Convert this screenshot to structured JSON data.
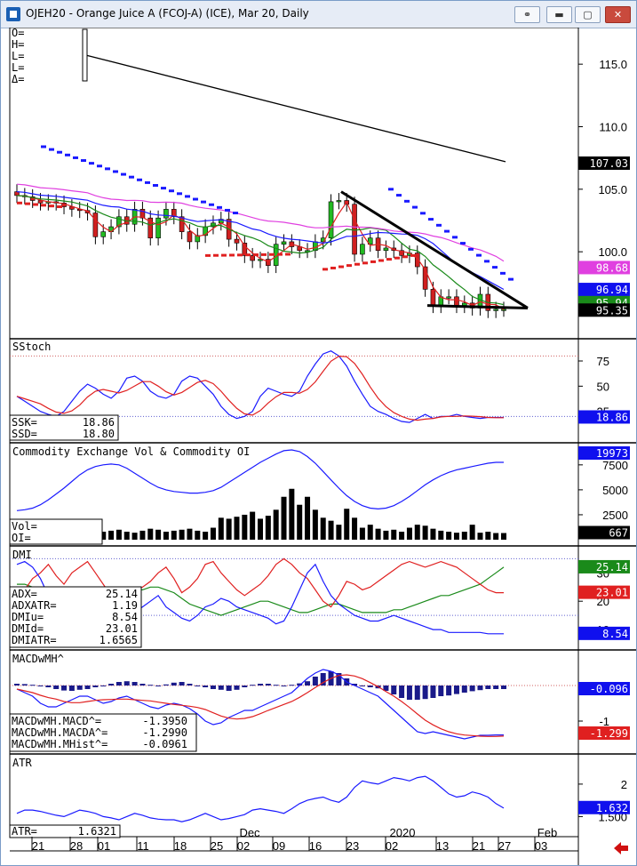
{
  "window": {
    "title": "OJEH20 - Orange Juice A (FCOJ-A) (ICE), Mar 20, Daily",
    "buttons": [
      "link-icon",
      "minimize-icon",
      "maximize-icon",
      "close-icon"
    ]
  },
  "colors": {
    "blue": "#1a1aff",
    "red": "#e02020",
    "green": "#1a8a1a",
    "magenta": "#e040e0",
    "black": "#000000",
    "panel_bg": "#ffffff"
  },
  "chart_data": [
    {
      "type": "candlestick",
      "title": "OJEH20 - Orange Juice A (FCOJ-A) (ICE), Mar 20, Daily",
      "ylim": [
        93.4,
        117.5
      ],
      "ticks": [
        100,
        105,
        110,
        115
      ],
      "tick_labels": [
        "100.0",
        "105.0",
        "110.0",
        "115.0"
      ],
      "ohlc_readout": [
        "O=",
        "H=",
        "L=",
        "L=",
        "Δ="
      ],
      "closes": [
        104.5,
        104.4,
        104.1,
        103.9,
        104.0,
        103.9,
        103.6,
        103.4,
        103.3,
        103.1,
        101.2,
        101.6,
        102.0,
        102.8,
        102.2,
        103.4,
        102.7,
        101.1,
        102.7,
        103.4,
        102.8,
        101.6,
        100.8,
        101.3,
        102.0,
        102.3,
        102.6,
        101.0,
        100.7,
        99.7,
        99.3,
        99.4,
        98.9,
        100.6,
        100.8,
        100.4,
        100.1,
        100.1,
        100.8,
        101.1,
        104.0,
        104.1,
        103.8,
        99.8,
        100.6,
        101.1,
        100.1,
        100.3,
        100.1,
        99.7,
        99.9,
        98.8,
        97.0,
        95.7,
        96.4,
        96.4,
        95.7,
        95.9,
        95.5,
        96.6,
        95.3,
        95.4,
        95.4
      ],
      "labels": {
        "price_last": "107.03",
        "sma_pink": "98.68",
        "sma_blue": "96.94",
        "sma_green": "95.94",
        "last_close": "95.35"
      },
      "lines": {
        "long_black": {
          "from": [
            0,
            115.7
          ],
          "to": [
            1,
            107.2
          ]
        }
      },
      "trendline_down": {
        "from_x": "2019-12-19",
        "from_y": 104.8,
        "to_x": "2020-01-29",
        "to_y": 95.5
      },
      "trendline_flat": {
        "y": 95.5
      }
    },
    {
      "type": "line",
      "name": "SStoch",
      "ylim": [
        0,
        90
      ],
      "ticks": [
        25,
        50,
        75
      ],
      "series": [
        {
          "name": "SSK",
          "value": "18.86"
        },
        {
          "name": "SSD",
          "value": "18.80"
        }
      ],
      "last_label": "18.86"
    },
    {
      "type": "bar",
      "name": "Commodity Exchange Vol & Commodity OI",
      "ticks": [
        2500,
        5000,
        7500
      ],
      "readout": [
        "Vol=",
        "OI="
      ],
      "last_vol": "667",
      "last_oi": "19973"
    },
    {
      "type": "line",
      "name": "DMI",
      "ticks": [
        10,
        20,
        30
      ],
      "readout": [
        [
          "ADX=",
          "25.14"
        ],
        [
          "ADXATR=",
          "1.19"
        ],
        [
          "DMIu=",
          "8.54"
        ],
        [
          "DMId=",
          "23.01"
        ],
        [
          "DMIATR=",
          "1.6565"
        ]
      ],
      "last_labels": {
        "adx": "25.14",
        "dmid": "23.01",
        "dmiu": "8.54"
      }
    },
    {
      "type": "bar",
      "name": "MACDwMH^",
      "ticks": [
        0,
        -1
      ],
      "readout": [
        [
          "MACDwMH.MACD^=",
          "-1.3950"
        ],
        [
          "MACDwMH.MACDA^=",
          "-1.2990"
        ],
        [
          "MACDwMH.MHist^=",
          "-0.0961"
        ]
      ],
      "last_labels": {
        "hist": "-0.096",
        "macda": "-1.299"
      }
    },
    {
      "type": "line",
      "name": "ATR",
      "ticks": [
        1.5,
        2
      ],
      "tick_labels": [
        "1.500",
        "2"
      ],
      "readout": [
        [
          "ATR=",
          "1.6321"
        ]
      ],
      "last_label": "1.632"
    }
  ],
  "x_axis": {
    "day_labels": [
      "21",
      "28",
      "01",
      "11",
      "18",
      "25",
      "02",
      "09",
      "16",
      "23",
      "02",
      "13",
      "21",
      "27",
      "03"
    ],
    "month_labels": [
      "Dec",
      "2020",
      "Feb"
    ]
  }
}
